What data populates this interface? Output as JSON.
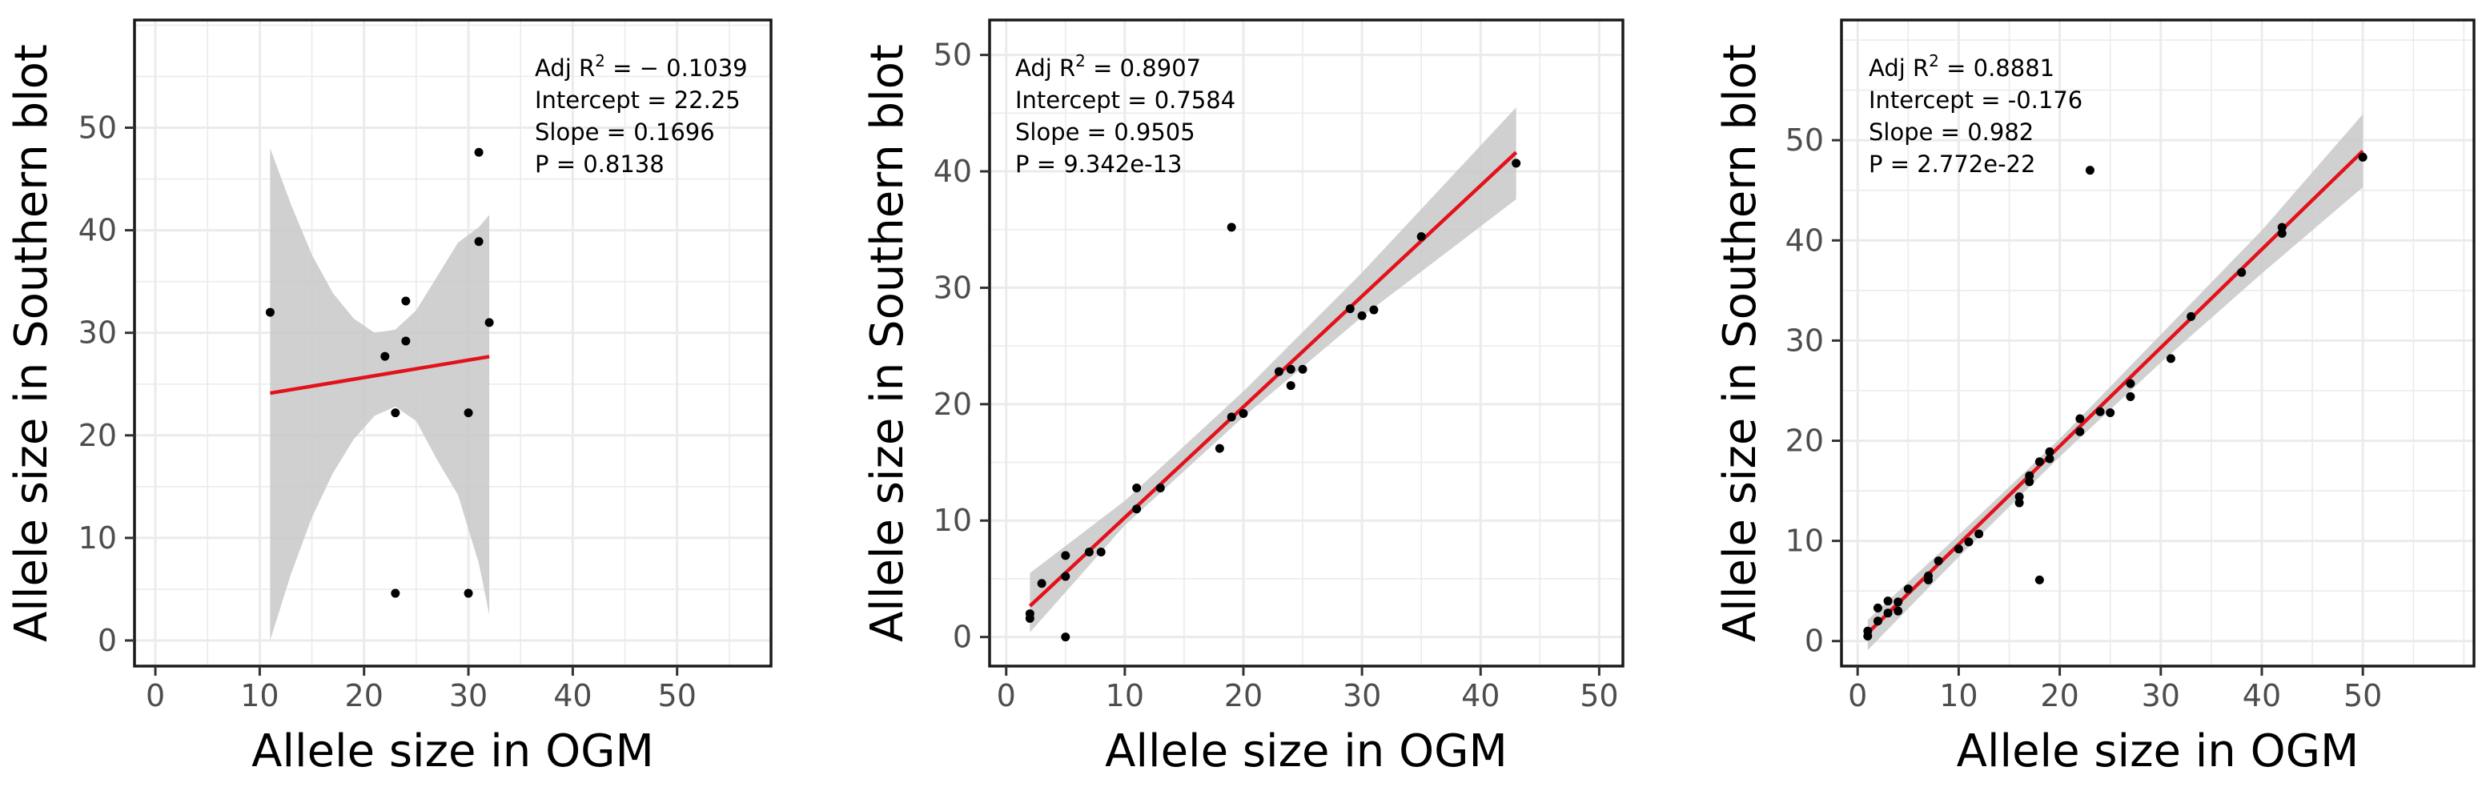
{
  "chart_data": [
    {
      "type": "scatter",
      "xlabel": "Allele size in OGM",
      "ylabel": "Allele size in Southern blot",
      "xlim": [
        -2,
        59
      ],
      "ylim": [
        -2.5,
        60.5
      ],
      "xticks": [
        0,
        10,
        20,
        30,
        40,
        50
      ],
      "yticks": [
        0,
        10,
        20,
        30,
        40,
        50
      ],
      "grid": true,
      "annotation": {
        "adj_r2_label": "Adj R",
        "adj_r2_value": " = − 0.1039",
        "intercept": "Intercept = 22.25",
        "slope": "Slope = 0.1696",
        "p": "P = 0.8138"
      },
      "regression": {
        "intercept": 22.25,
        "slope": 0.1696,
        "x_range": [
          11,
          32
        ]
      },
      "confidence_band": {
        "x": [
          11,
          13,
          15,
          17,
          19,
          21,
          23,
          25,
          27,
          29,
          31,
          32
        ],
        "lower": [
          0,
          6.5,
          12.0,
          16.3,
          19.6,
          21.9,
          22.8,
          21.4,
          17.6,
          14.2,
          7.5,
          2.5
        ],
        "upper": [
          48,
          42.5,
          37.6,
          33.9,
          31.4,
          30.0,
          30.3,
          32.2,
          35.5,
          38.8,
          40.3,
          41.5
        ]
      },
      "points": [
        {
          "x": 11,
          "y": 32
        },
        {
          "x": 22,
          "y": 27.7
        },
        {
          "x": 23,
          "y": 22.2
        },
        {
          "x": 24,
          "y": 29.2
        },
        {
          "x": 24,
          "y": 33.1
        },
        {
          "x": 23,
          "y": 4.6
        },
        {
          "x": 30,
          "y": 4.6
        },
        {
          "x": 30,
          "y": 22.2
        },
        {
          "x": 31,
          "y": 38.9
        },
        {
          "x": 31,
          "y": 47.6
        },
        {
          "x": 32,
          "y": 31
        }
      ],
      "colors": {
        "line": "#e3111a",
        "band": "#c8c8c8",
        "point": "#000000"
      }
    },
    {
      "type": "scatter",
      "xlabel": "Allele size in OGM",
      "ylabel": "Allele size in Southern blot",
      "xlim": [
        -1.4,
        52
      ],
      "ylim": [
        -2.5,
        53
      ],
      "xticks": [
        0,
        10,
        20,
        30,
        40,
        50
      ],
      "yticks": [
        0,
        10,
        20,
        30,
        40,
        50
      ],
      "grid": true,
      "annotation": {
        "adj_r2_label": "Adj R",
        "adj_r2_value": " = 0.8907",
        "intercept": "Intercept = 0.7584",
        "slope": "Slope = 0.9505",
        "p": "P = 9.342e-13"
      },
      "regression": {
        "intercept": 0.7584,
        "slope": 0.9505,
        "x_range": [
          2,
          43
        ]
      },
      "confidence_band": {
        "x": [
          2,
          10,
          20,
          30,
          43
        ],
        "lower": [
          0.4,
          9.6,
          18.9,
          27.5,
          37.6
        ],
        "upper": [
          5.5,
          11.7,
          21.1,
          31.3,
          45.5
        ]
      },
      "points": [
        {
          "x": 2,
          "y": 1.6
        },
        {
          "x": 2,
          "y": 2
        },
        {
          "x": 3,
          "y": 4.6
        },
        {
          "x": 5,
          "y": 0
        },
        {
          "x": 5,
          "y": 5.2
        },
        {
          "x": 5,
          "y": 7
        },
        {
          "x": 7,
          "y": 7.3
        },
        {
          "x": 8,
          "y": 7.3
        },
        {
          "x": 11,
          "y": 11
        },
        {
          "x": 11,
          "y": 12.8
        },
        {
          "x": 13,
          "y": 12.8
        },
        {
          "x": 18,
          "y": 16.2
        },
        {
          "x": 19,
          "y": 18.9
        },
        {
          "x": 19,
          "y": 35.2
        },
        {
          "x": 20,
          "y": 19.2
        },
        {
          "x": 23,
          "y": 22.8
        },
        {
          "x": 24,
          "y": 21.6
        },
        {
          "x": 24,
          "y": 23
        },
        {
          "x": 25,
          "y": 23
        },
        {
          "x": 29,
          "y": 28.2
        },
        {
          "x": 30,
          "y": 27.6
        },
        {
          "x": 31,
          "y": 28.1
        },
        {
          "x": 35,
          "y": 34.4
        },
        {
          "x": 43,
          "y": 40.7
        }
      ],
      "colors": {
        "line": "#e3111a",
        "band": "#c8c8c8",
        "point": "#000000"
      }
    },
    {
      "type": "scatter",
      "xlabel": "Allele size in OGM",
      "ylabel": "Allele size in Southern blot",
      "xlim": [
        -1.6,
        61
      ],
      "ylim": [
        -2.5,
        62
      ],
      "xticks": [
        0,
        10,
        20,
        30,
        40,
        50
      ],
      "yticks": [
        0,
        10,
        20,
        30,
        40,
        50
      ],
      "grid": true,
      "annotation": {
        "adj_r2_label": "Adj R",
        "adj_r2_value": " = 0.8881",
        "intercept": "Intercept = -0.176",
        "slope": "Slope = 0.982",
        "p": "P = 2.772e-22"
      },
      "regression": {
        "intercept": -0.176,
        "slope": 0.982,
        "x_range": [
          1,
          50
        ]
      },
      "confidence_band": {
        "x": [
          1,
          10,
          20,
          30,
          40,
          50
        ],
        "lower": [
          -0.9,
          8.4,
          18.4,
          27.8,
          36.7,
          45.3
        ],
        "upper": [
          2.1,
          10.6,
          20.2,
          30.6,
          41.0,
          52.6
        ]
      },
      "points": [
        {
          "x": 1,
          "y": 0.5
        },
        {
          "x": 1,
          "y": 1
        },
        {
          "x": 2,
          "y": 2
        },
        {
          "x": 2,
          "y": 3.3
        },
        {
          "x": 3,
          "y": 2.8
        },
        {
          "x": 3,
          "y": 4
        },
        {
          "x": 4,
          "y": 3
        },
        {
          "x": 4,
          "y": 3.9
        },
        {
          "x": 5,
          "y": 5.2
        },
        {
          "x": 7,
          "y": 6.1
        },
        {
          "x": 7,
          "y": 6.5
        },
        {
          "x": 8,
          "y": 8
        },
        {
          "x": 10,
          "y": 9.2
        },
        {
          "x": 11,
          "y": 9.9
        },
        {
          "x": 12,
          "y": 10.7
        },
        {
          "x": 16,
          "y": 13.8
        },
        {
          "x": 16,
          "y": 14.4
        },
        {
          "x": 17,
          "y": 15.9
        },
        {
          "x": 17,
          "y": 16.5
        },
        {
          "x": 18,
          "y": 6.1
        },
        {
          "x": 18,
          "y": 17.9
        },
        {
          "x": 19,
          "y": 18.2
        },
        {
          "x": 19,
          "y": 18.9
        },
        {
          "x": 22,
          "y": 20.9
        },
        {
          "x": 22,
          "y": 22.2
        },
        {
          "x": 23,
          "y": 47
        },
        {
          "x": 24,
          "y": 22.9
        },
        {
          "x": 25,
          "y": 22.8
        },
        {
          "x": 27,
          "y": 24.4
        },
        {
          "x": 27,
          "y": 25.7
        },
        {
          "x": 31,
          "y": 28.2
        },
        {
          "x": 33,
          "y": 32.4
        },
        {
          "x": 38,
          "y": 36.8
        },
        {
          "x": 42,
          "y": 40.7
        },
        {
          "x": 42,
          "y": 41.3
        },
        {
          "x": 50,
          "y": 48.3
        }
      ],
      "colors": {
        "line": "#e3111a",
        "band": "#c8c8c8",
        "point": "#000000"
      }
    }
  ]
}
